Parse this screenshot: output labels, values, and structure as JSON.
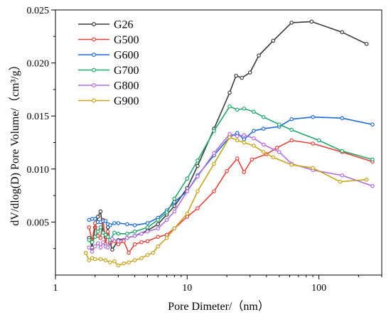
{
  "chart_data": {
    "type": "line",
    "xlabel": "Pore Dimeter/（nm）",
    "ylabel": "dV/dlog(D) Pore Volume/（cm³/g）",
    "xscale": "log",
    "xlim": [
      1,
      300
    ],
    "ylim": [
      0,
      0.025
    ],
    "xticks": [
      "1",
      "10",
      "100"
    ],
    "yticks": [
      "0.005",
      "0.010",
      "0.015",
      "0.020",
      "0.025"
    ],
    "legend_position": "top-left",
    "grid": false,
    "series": [
      {
        "name": "G26",
        "color": "#3a3a3a",
        "points": [
          [
            1.8,
            0.0035
          ],
          [
            1.9,
            0.0026
          ],
          [
            2.0,
            0.0045
          ],
          [
            2.1,
            0.0055
          ],
          [
            2.2,
            0.006
          ],
          [
            2.3,
            0.0041
          ],
          [
            2.4,
            0.0036
          ],
          [
            2.5,
            0.0045
          ],
          [
            2.6,
            0.003
          ],
          [
            2.7,
            0.0024
          ],
          [
            3.0,
            0.0033
          ],
          [
            3.5,
            0.0035
          ],
          [
            4.0,
            0.0037
          ],
          [
            5.0,
            0.0042
          ],
          [
            6.0,
            0.0048
          ],
          [
            7.0,
            0.0057
          ],
          [
            8.0,
            0.0065
          ],
          [
            10,
            0.0082
          ],
          [
            12,
            0.0103
          ],
          [
            16,
            0.0138
          ],
          [
            21,
            0.0172
          ],
          [
            23.5,
            0.0188
          ],
          [
            26,
            0.0186
          ],
          [
            30,
            0.0191
          ],
          [
            35,
            0.0207
          ],
          [
            45,
            0.0221
          ],
          [
            62,
            0.0238
          ],
          [
            88,
            0.0239
          ],
          [
            150,
            0.0229
          ],
          [
            230,
            0.0218
          ]
        ]
      },
      {
        "name": "G500",
        "color": "#e8413a",
        "points": [
          [
            1.8,
            0.0045
          ],
          [
            1.9,
            0.0032
          ],
          [
            2.0,
            0.0049
          ],
          [
            2.1,
            0.0037
          ],
          [
            2.2,
            0.0035
          ],
          [
            2.3,
            0.0052
          ],
          [
            2.4,
            0.0029
          ],
          [
            2.5,
            0.0041
          ],
          [
            2.6,
            0.0031
          ],
          [
            2.8,
            0.0032
          ],
          [
            3.0,
            0.0029
          ],
          [
            3.3,
            0.0032
          ],
          [
            3.6,
            0.0021
          ],
          [
            4.0,
            0.0029
          ],
          [
            4.5,
            0.0031
          ],
          [
            5.0,
            0.0032
          ],
          [
            6.0,
            0.0036
          ],
          [
            7.0,
            0.0038
          ],
          [
            8.0,
            0.0044
          ],
          [
            10,
            0.0055
          ],
          [
            12,
            0.0063
          ],
          [
            16,
            0.0079
          ],
          [
            20,
            0.0098
          ],
          [
            24,
            0.011
          ],
          [
            27,
            0.0097
          ],
          [
            31,
            0.0109
          ],
          [
            40,
            0.0114
          ],
          [
            48,
            0.012
          ],
          [
            62,
            0.0127
          ],
          [
            90,
            0.0124
          ],
          [
            150,
            0.0116
          ],
          [
            255,
            0.0107
          ]
        ]
      },
      {
        "name": "G600",
        "color": "#1e6bd6",
        "points": [
          [
            1.8,
            0.0052
          ],
          [
            1.9,
            0.0053
          ],
          [
            2.0,
            0.0053
          ],
          [
            2.1,
            0.005
          ],
          [
            2.2,
            0.005
          ],
          [
            2.3,
            0.0051
          ],
          [
            2.4,
            0.0051
          ],
          [
            2.5,
            0.0048
          ],
          [
            2.6,
            0.0047
          ],
          [
            2.8,
            0.0049
          ],
          [
            3.0,
            0.0049
          ],
          [
            3.5,
            0.0048
          ],
          [
            4.0,
            0.0047
          ],
          [
            5.0,
            0.0049
          ],
          [
            6.0,
            0.0054
          ],
          [
            7.0,
            0.0061
          ],
          [
            8.0,
            0.0069
          ],
          [
            10,
            0.0079
          ],
          [
            12,
            0.0094
          ],
          [
            16,
            0.0113
          ],
          [
            21,
            0.013
          ],
          [
            24,
            0.0134
          ],
          [
            27,
            0.0128
          ],
          [
            32,
            0.0136
          ],
          [
            38,
            0.0138
          ],
          [
            50,
            0.014
          ],
          [
            62,
            0.0147
          ],
          [
            90,
            0.0149
          ],
          [
            150,
            0.0148
          ],
          [
            255,
            0.0142
          ]
        ]
      },
      {
        "name": "G700",
        "color": "#21a86b",
        "points": [
          [
            1.8,
            0.0033
          ],
          [
            1.9,
            0.0031
          ],
          [
            2.0,
            0.0036
          ],
          [
            2.1,
            0.0041
          ],
          [
            2.2,
            0.0045
          ],
          [
            2.3,
            0.004
          ],
          [
            2.4,
            0.0038
          ],
          [
            2.5,
            0.0036
          ],
          [
            2.6,
            0.0033
          ],
          [
            2.8,
            0.004
          ],
          [
            3.0,
            0.0039
          ],
          [
            3.5,
            0.0039
          ],
          [
            4.0,
            0.0041
          ],
          [
            5.0,
            0.0045
          ],
          [
            6.0,
            0.0052
          ],
          [
            7.0,
            0.0059
          ],
          [
            8.0,
            0.0072
          ],
          [
            10,
            0.0091
          ],
          [
            12,
            0.0108
          ],
          [
            16,
            0.0136
          ],
          [
            21,
            0.0159
          ],
          [
            24,
            0.0156
          ],
          [
            27,
            0.0157
          ],
          [
            32,
            0.0154
          ],
          [
            38,
            0.0149
          ],
          [
            50,
            0.0142
          ],
          [
            62,
            0.0137
          ],
          [
            100,
            0.0127
          ],
          [
            150,
            0.0117
          ],
          [
            255,
            0.0109
          ]
        ]
      },
      {
        "name": "G800",
        "color": "#b06ee0",
        "points": [
          [
            1.8,
            0.0026
          ],
          [
            1.9,
            0.0022
          ],
          [
            2.0,
            0.0027
          ],
          [
            2.1,
            0.003
          ],
          [
            2.2,
            0.0026
          ],
          [
            2.3,
            0.0031
          ],
          [
            2.4,
            0.0027
          ],
          [
            2.5,
            0.0026
          ],
          [
            2.7,
            0.0034
          ],
          [
            3.0,
            0.0032
          ],
          [
            3.5,
            0.0035
          ],
          [
            4.0,
            0.0037
          ],
          [
            4.5,
            0.0039
          ],
          [
            5.0,
            0.0041
          ],
          [
            6.0,
            0.0044
          ],
          [
            7.0,
            0.0052
          ],
          [
            8.0,
            0.006
          ],
          [
            10,
            0.0079
          ],
          [
            12,
            0.0093
          ],
          [
            16,
            0.0115
          ],
          [
            21,
            0.0133
          ],
          [
            24,
            0.0131
          ],
          [
            27,
            0.0132
          ],
          [
            32,
            0.0129
          ],
          [
            38,
            0.0123
          ],
          [
            50,
            0.0116
          ],
          [
            62,
            0.0105
          ],
          [
            90,
            0.0099
          ],
          [
            150,
            0.0094
          ],
          [
            255,
            0.0084
          ]
        ]
      },
      {
        "name": "G900",
        "color": "#c8a418",
        "points": [
          [
            1.7,
            0.0021
          ],
          [
            1.8,
            0.0014
          ],
          [
            1.9,
            0.0016
          ],
          [
            2.0,
            0.0015
          ],
          [
            2.2,
            0.0015
          ],
          [
            2.4,
            0.0014
          ],
          [
            2.6,
            0.0012
          ],
          [
            2.8,
            0.0013
          ],
          [
            3.0,
            0.0009
          ],
          [
            3.3,
            0.0011
          ],
          [
            3.6,
            0.0012
          ],
          [
            4.0,
            0.0014
          ],
          [
            4.5,
            0.0016
          ],
          [
            5.0,
            0.0019
          ],
          [
            5.5,
            0.0021
          ],
          [
            6.0,
            0.0027
          ],
          [
            7.0,
            0.0035
          ],
          [
            8.0,
            0.0044
          ],
          [
            10,
            0.0058
          ],
          [
            12,
            0.0079
          ],
          [
            16,
            0.0105
          ],
          [
            21,
            0.013
          ],
          [
            24,
            0.0127
          ],
          [
            27,
            0.0125
          ],
          [
            32,
            0.0122
          ],
          [
            38,
            0.0116
          ],
          [
            45,
            0.0111
          ],
          [
            62,
            0.0104
          ],
          [
            90,
            0.0101
          ],
          [
            145,
            0.0088
          ],
          [
            230,
            0.009
          ]
        ]
      }
    ]
  }
}
